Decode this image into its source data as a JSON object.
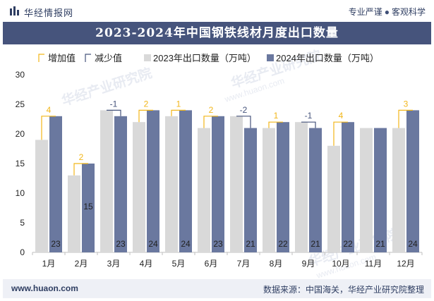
{
  "header": {
    "brand": "华经情报网",
    "tagline_left": "专业严谨",
    "tagline_dot": "●",
    "tagline_right": "客观科学"
  },
  "title": "2023-2024年中国钢铁线材月度出口数量",
  "footer": {
    "url": "www.huaon.com",
    "source": "数据来源：中国海关，华经产业研究院整理"
  },
  "watermark": "华经产业研究院",
  "watermark_url": "www.huaon.com",
  "colors": {
    "header_text": "#2f3e62",
    "title_bg": "#46547c",
    "bar_2023": "#d9d9d9",
    "bar_2024": "#6a789f",
    "increase": "#f2b619",
    "decrease": "#46547c"
  },
  "chart_data": {
    "type": "bar",
    "categories": [
      "1月",
      "2月",
      "3月",
      "4月",
      "5月",
      "6月",
      "7月",
      "8月",
      "9月",
      "10月",
      "11月",
      "12月"
    ],
    "series": [
      {
        "name": "2023年出口数量（万吨）",
        "values": [
          19,
          13,
          24,
          22,
          23,
          21,
          23,
          21,
          22,
          18,
          21,
          21
        ]
      },
      {
        "name": "2024年出口数量（万吨）",
        "values": [
          23,
          15,
          23,
          24,
          24,
          23,
          21,
          22,
          21,
          22,
          21,
          24
        ]
      }
    ],
    "data_labels_2024": [
      "23",
      "15",
      "23",
      "24",
      "24",
      "23",
      "21",
      "22",
      "21",
      "22",
      "21",
      "24"
    ],
    "change": [
      4,
      2,
      -1,
      2,
      1,
      2,
      -2,
      1,
      -1,
      4,
      0,
      3
    ],
    "change_labels": [
      "4",
      "2",
      "-1",
      "2",
      "1",
      "2",
      "-2",
      "1",
      "-1",
      "4",
      "",
      "3"
    ],
    "legend": [
      "增加值",
      "减少值",
      "2023年出口数量（万吨）",
      "2024年出口数量（万吨）"
    ],
    "legend_position": "top",
    "y_ticks": [
      "0",
      "5",
      "10",
      "15",
      "20",
      "25",
      "30"
    ],
    "ylim": [
      0,
      30
    ],
    "grid": false
  }
}
